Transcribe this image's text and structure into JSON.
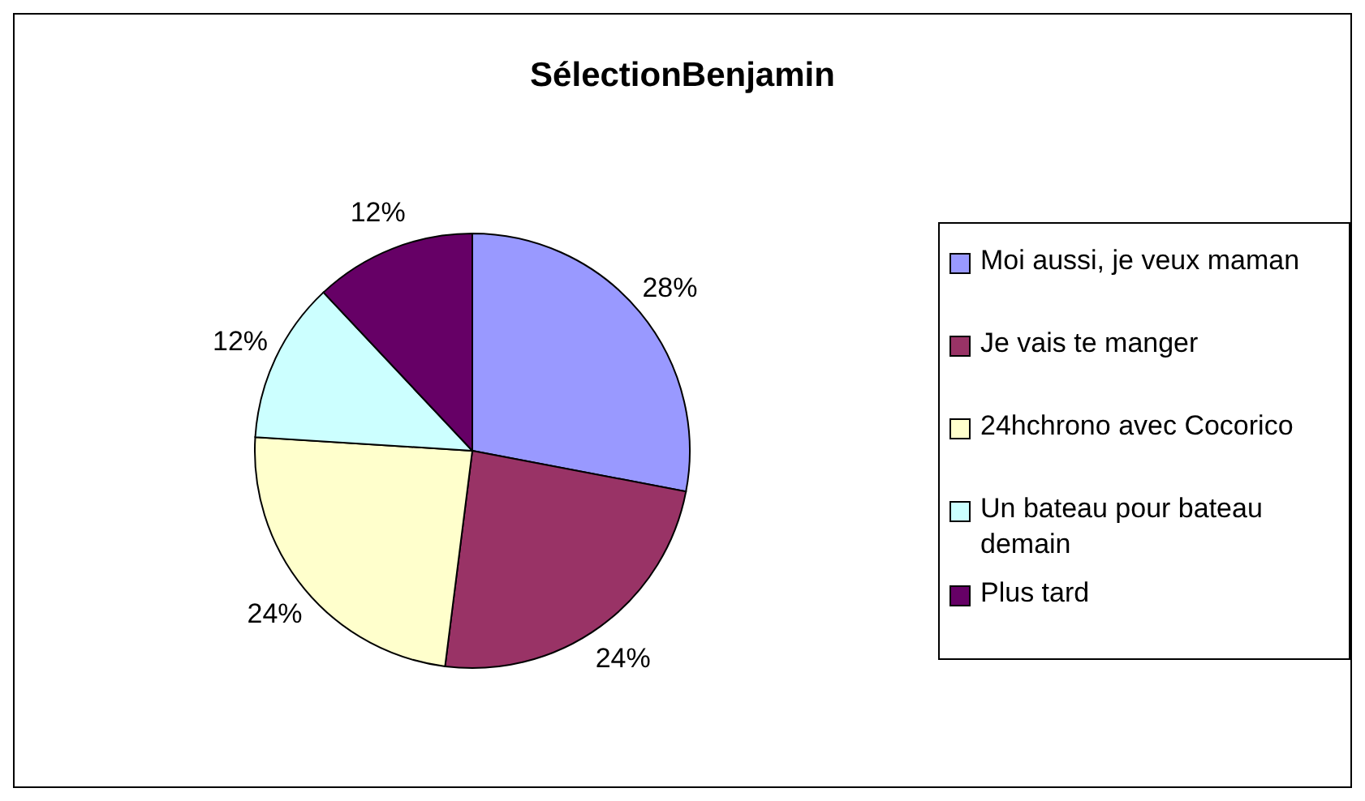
{
  "chart_data": {
    "type": "pie",
    "title": "SélectionBenjamin",
    "categories": [
      "Moi aussi, je veux maman",
      "Je vais te manger",
      "24hchrono avec Cocorico",
      "Un bateau pour bateau demain",
      "Plus tard"
    ],
    "values": [
      28,
      24,
      24,
      12,
      12
    ],
    "colors": [
      "#9999ff",
      "#993366",
      "#ffffcc",
      "#ccffff",
      "#660066"
    ],
    "value_labels": [
      "28%",
      "24%",
      "24%",
      "12%",
      "12%"
    ],
    "legend": "right"
  }
}
